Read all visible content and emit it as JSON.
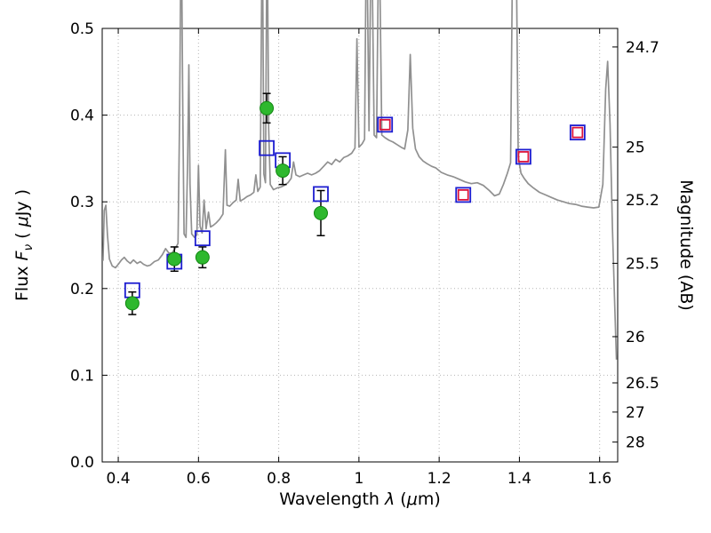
{
  "labels": {
    "xlabel": {
      "p0": "Wavelength  ",
      "p1": "λ",
      "p2": " (",
      "p3": "μ",
      "p4": "m)"
    },
    "ylabel_left": {
      "p0": "Flux  ",
      "p1": "F",
      "sub": "ν",
      "p2": "  ( ",
      "p3": "μ",
      "p4": "Jy )"
    },
    "ylabel_right": "Magnitude (AB)"
  },
  "chart_data": {
    "type": "line",
    "title": "",
    "xlabel": "Wavelength λ (μm)",
    "ylabel": "Flux Fν ( μJy )",
    "ylabel_right": "Magnitude (AB)",
    "xlim": [
      0.36,
      1.645
    ],
    "ylim": [
      0.0,
      0.5
    ],
    "grid": true,
    "x_ticks": {
      "values": [
        0.4,
        0.6,
        0.8,
        1.0,
        1.2,
        1.4,
        1.6
      ],
      "labels": [
        "0.4",
        "0.6",
        "0.8",
        "1",
        "1.2",
        "1.4",
        "1.6"
      ]
    },
    "y_ticks_left": {
      "values": [
        0.0,
        0.1,
        0.2,
        0.3,
        0.4,
        0.5
      ],
      "labels": [
        "0.0",
        "0.1",
        "0.2",
        "0.3",
        "0.4",
        "0.5"
      ]
    },
    "y_ticks_right": [
      {
        "label": "24.7",
        "flux": 0.4786
      },
      {
        "label": "25",
        "flux": 0.3631
      },
      {
        "label": "25.2",
        "flux": 0.302
      },
      {
        "label": "25.5",
        "flux": 0.2291
      },
      {
        "label": "26",
        "flux": 0.1445
      },
      {
        "label": "26.5",
        "flux": 0.0912
      },
      {
        "label": "27",
        "flux": 0.0575
      },
      {
        "label": "28",
        "flux": 0.0229
      }
    ],
    "style": {
      "grid_color": "#b5b5b5",
      "frame_color": "#000000",
      "spectrum_color": "#909090",
      "obs_fill": "#2eb82e",
      "obs_edge": "#128712",
      "err_color": "#000000",
      "model_blue": "#1d1dd0",
      "model_red": "#dc143c",
      "text_color": "#000000"
    },
    "series": [
      {
        "name": "model-spectrum",
        "type": "line",
        "color": "#909090",
        "points": [
          [
            0.362,
            0.232
          ],
          [
            0.365,
            0.29
          ],
          [
            0.369,
            0.296
          ],
          [
            0.373,
            0.262
          ],
          [
            0.378,
            0.234
          ],
          [
            0.385,
            0.226
          ],
          [
            0.393,
            0.224
          ],
          [
            0.4,
            0.228
          ],
          [
            0.408,
            0.233
          ],
          [
            0.415,
            0.236
          ],
          [
            0.422,
            0.232
          ],
          [
            0.43,
            0.229
          ],
          [
            0.438,
            0.233
          ],
          [
            0.447,
            0.229
          ],
          [
            0.455,
            0.231
          ],
          [
            0.463,
            0.228
          ],
          [
            0.472,
            0.226
          ],
          [
            0.48,
            0.227
          ],
          [
            0.49,
            0.231
          ],
          [
            0.5,
            0.233
          ],
          [
            0.51,
            0.239
          ],
          [
            0.518,
            0.246
          ],
          [
            0.526,
            0.241
          ],
          [
            0.534,
            0.241
          ],
          [
            0.542,
            0.246
          ],
          [
            0.549,
            0.252
          ],
          [
            0.553,
            0.4
          ],
          [
            0.557,
            0.64
          ],
          [
            0.561,
            0.4
          ],
          [
            0.564,
            0.263
          ],
          [
            0.569,
            0.259
          ],
          [
            0.573,
            0.345
          ],
          [
            0.576,
            0.458
          ],
          [
            0.579,
            0.32
          ],
          [
            0.583,
            0.263
          ],
          [
            0.59,
            0.259
          ],
          [
            0.596,
            0.262
          ],
          [
            0.6,
            0.342
          ],
          [
            0.604,
            0.272
          ],
          [
            0.609,
            0.264
          ],
          [
            0.614,
            0.302
          ],
          [
            0.619,
            0.269
          ],
          [
            0.625,
            0.288
          ],
          [
            0.63,
            0.271
          ],
          [
            0.637,
            0.273
          ],
          [
            0.645,
            0.276
          ],
          [
            0.653,
            0.28
          ],
          [
            0.661,
            0.286
          ],
          [
            0.667,
            0.36
          ],
          [
            0.671,
            0.296
          ],
          [
            0.678,
            0.295
          ],
          [
            0.686,
            0.299
          ],
          [
            0.694,
            0.302
          ],
          [
            0.699,
            0.326
          ],
          [
            0.704,
            0.301
          ],
          [
            0.712,
            0.303
          ],
          [
            0.721,
            0.306
          ],
          [
            0.73,
            0.308
          ],
          [
            0.738,
            0.311
          ],
          [
            0.743,
            0.331
          ],
          [
            0.748,
            0.312
          ],
          [
            0.754,
            0.317
          ],
          [
            0.759,
            0.64
          ],
          [
            0.763,
            0.332
          ],
          [
            0.767,
            0.322
          ],
          [
            0.771,
            0.64
          ],
          [
            0.775,
            0.385
          ],
          [
            0.779,
            0.32
          ],
          [
            0.787,
            0.314
          ],
          [
            0.796,
            0.316
          ],
          [
            0.805,
            0.317
          ],
          [
            0.814,
            0.319
          ],
          [
            0.823,
            0.322
          ],
          [
            0.831,
            0.327
          ],
          [
            0.837,
            0.346
          ],
          [
            0.843,
            0.331
          ],
          [
            0.852,
            0.329
          ],
          [
            0.862,
            0.331
          ],
          [
            0.872,
            0.333
          ],
          [
            0.882,
            0.331
          ],
          [
            0.892,
            0.333
          ],
          [
            0.902,
            0.336
          ],
          [
            0.912,
            0.341
          ],
          [
            0.922,
            0.346
          ],
          [
            0.932,
            0.343
          ],
          [
            0.942,
            0.349
          ],
          [
            0.952,
            0.346
          ],
          [
            0.962,
            0.351
          ],
          [
            0.972,
            0.353
          ],
          [
            0.982,
            0.356
          ],
          [
            0.99,
            0.362
          ],
          [
            0.995,
            0.488
          ],
          [
            1.0,
            0.363
          ],
          [
            1.008,
            0.367
          ],
          [
            1.014,
            0.372
          ],
          [
            1.019,
            0.64
          ],
          [
            1.025,
            0.382
          ],
          [
            1.031,
            0.64
          ],
          [
            1.038,
            0.377
          ],
          [
            1.044,
            0.374
          ],
          [
            1.05,
            0.64
          ],
          [
            1.057,
            0.377
          ],
          [
            1.065,
            0.374
          ],
          [
            1.075,
            0.371
          ],
          [
            1.085,
            0.369
          ],
          [
            1.095,
            0.366
          ],
          [
            1.105,
            0.363
          ],
          [
            1.114,
            0.361
          ],
          [
            1.122,
            0.383
          ],
          [
            1.128,
            0.47
          ],
          [
            1.134,
            0.385
          ],
          [
            1.141,
            0.361
          ],
          [
            1.15,
            0.352
          ],
          [
            1.16,
            0.347
          ],
          [
            1.17,
            0.344
          ],
          [
            1.181,
            0.341
          ],
          [
            1.192,
            0.339
          ],
          [
            1.205,
            0.334
          ],
          [
            1.22,
            0.331
          ],
          [
            1.235,
            0.329
          ],
          [
            1.25,
            0.326
          ],
          [
            1.265,
            0.323
          ],
          [
            1.28,
            0.321
          ],
          [
            1.295,
            0.322
          ],
          [
            1.31,
            0.319
          ],
          [
            1.325,
            0.313
          ],
          [
            1.338,
            0.307
          ],
          [
            1.35,
            0.309
          ],
          [
            1.36,
            0.32
          ],
          [
            1.37,
            0.333
          ],
          [
            1.378,
            0.345
          ],
          [
            1.384,
            0.64
          ],
          [
            1.391,
            0.64
          ],
          [
            1.397,
            0.352
          ],
          [
            1.404,
            0.333
          ],
          [
            1.412,
            0.327
          ],
          [
            1.422,
            0.321
          ],
          [
            1.435,
            0.316
          ],
          [
            1.45,
            0.311
          ],
          [
            1.465,
            0.308
          ],
          [
            1.48,
            0.305
          ],
          [
            1.495,
            0.302
          ],
          [
            1.51,
            0.3
          ],
          [
            1.525,
            0.298
          ],
          [
            1.54,
            0.297
          ],
          [
            1.555,
            0.295
          ],
          [
            1.57,
            0.294
          ],
          [
            1.585,
            0.293
          ],
          [
            1.598,
            0.294
          ],
          [
            1.608,
            0.32
          ],
          [
            1.615,
            0.43
          ],
          [
            1.62,
            0.462
          ],
          [
            1.626,
            0.39
          ],
          [
            1.632,
            0.27
          ],
          [
            1.637,
            0.19
          ],
          [
            1.642,
            0.118
          ]
        ]
      },
      {
        "name": "observed-photometry",
        "type": "scatter",
        "marker": "circle",
        "color": "#2eb82e",
        "points": [
          {
            "x": 0.435,
            "y": 0.183,
            "err": 0.013
          },
          {
            "x": 0.54,
            "y": 0.234,
            "err": 0.014
          },
          {
            "x": 0.61,
            "y": 0.236,
            "err": 0.012
          },
          {
            "x": 0.77,
            "y": 0.408,
            "err": 0.017
          },
          {
            "x": 0.81,
            "y": 0.336,
            "err": 0.016
          },
          {
            "x": 0.905,
            "y": 0.287,
            "err": 0.026
          }
        ]
      },
      {
        "name": "model-photometry-optical",
        "type": "scatter",
        "marker": "open-square",
        "color": "#1d1dd0",
        "points": [
          {
            "x": 0.435,
            "y": 0.198
          },
          {
            "x": 0.54,
            "y": 0.231
          },
          {
            "x": 0.61,
            "y": 0.258
          },
          {
            "x": 0.77,
            "y": 0.362
          },
          {
            "x": 0.81,
            "y": 0.348
          },
          {
            "x": 0.905,
            "y": 0.309
          }
        ]
      },
      {
        "name": "model-photometry-infrared",
        "type": "scatter",
        "marker": "open-square-double",
        "colors": [
          "#1d1dd0",
          "#dc143c"
        ],
        "points": [
          {
            "x": 1.065,
            "y": 0.389
          },
          {
            "x": 1.26,
            "y": 0.308
          },
          {
            "x": 1.41,
            "y": 0.352
          },
          {
            "x": 1.545,
            "y": 0.38
          }
        ]
      }
    ]
  }
}
